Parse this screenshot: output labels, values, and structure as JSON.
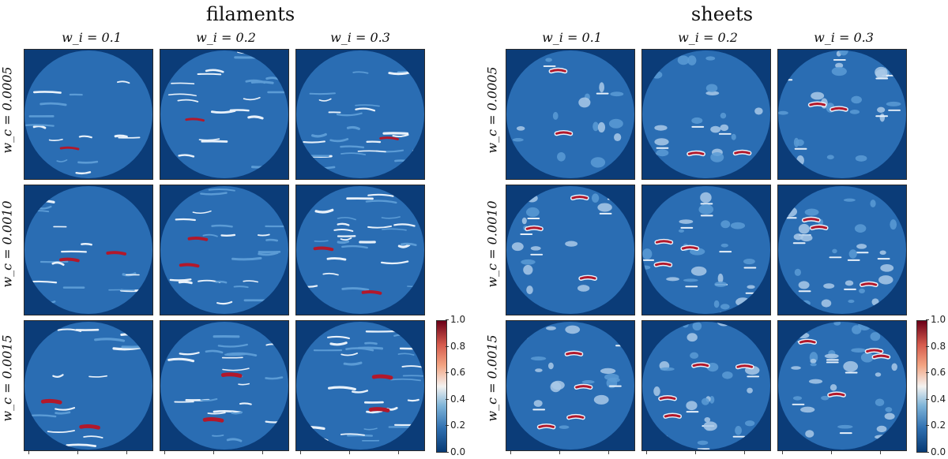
{
  "groups": [
    {
      "title": "filaments",
      "col_labels": [
        "w_i = 0.1",
        "w_i = 0.2",
        "w_i = 0.3"
      ],
      "row_labels": [
        "w_c = 0.0005",
        "w_c = 0.0010",
        "w_c = 0.0015"
      ],
      "structure": "filaments"
    },
    {
      "title": "sheets",
      "col_labels": [
        "w_i = 0.1",
        "w_i = 0.2",
        "w_i = 0.3"
      ],
      "row_labels": [
        "w_c = 0.0005",
        "w_c = 0.0010",
        "w_c = 0.0015"
      ],
      "structure": "sheets"
    }
  ],
  "colorbar": {
    "ticks": [
      "1.0",
      "0.8",
      "0.6",
      "0.4",
      "0.2",
      "0.0"
    ],
    "range": [
      0.0,
      1.0
    ],
    "colormap": "RdBu_r"
  },
  "colors": {
    "background_outside_disk": "#0b3c78",
    "disk_base": "#2a6db3",
    "low": "#5b9bd5",
    "mid": "#e8f1fa",
    "high": "#b2182b"
  }
}
